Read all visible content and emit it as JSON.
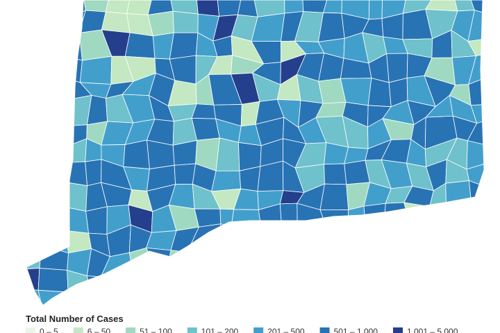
{
  "legend": {
    "title": "Total Number of Cases",
    "items": [
      {
        "label": "0 – 5",
        "color": "#eaf6e6"
      },
      {
        "label": "6 – 50",
        "color": "#c4e8c2"
      },
      {
        "label": "51 – 100",
        "color": "#a0d9c1"
      },
      {
        "label": "101 – 200",
        "color": "#6fc1cb"
      },
      {
        "label": "201 – 500",
        "color": "#429fcc"
      },
      {
        "label": "501 – 1,000",
        "color": "#2873b4"
      },
      {
        "label": "1,001 – 5,000",
        "color": "#243f8c"
      }
    ]
  }
}
